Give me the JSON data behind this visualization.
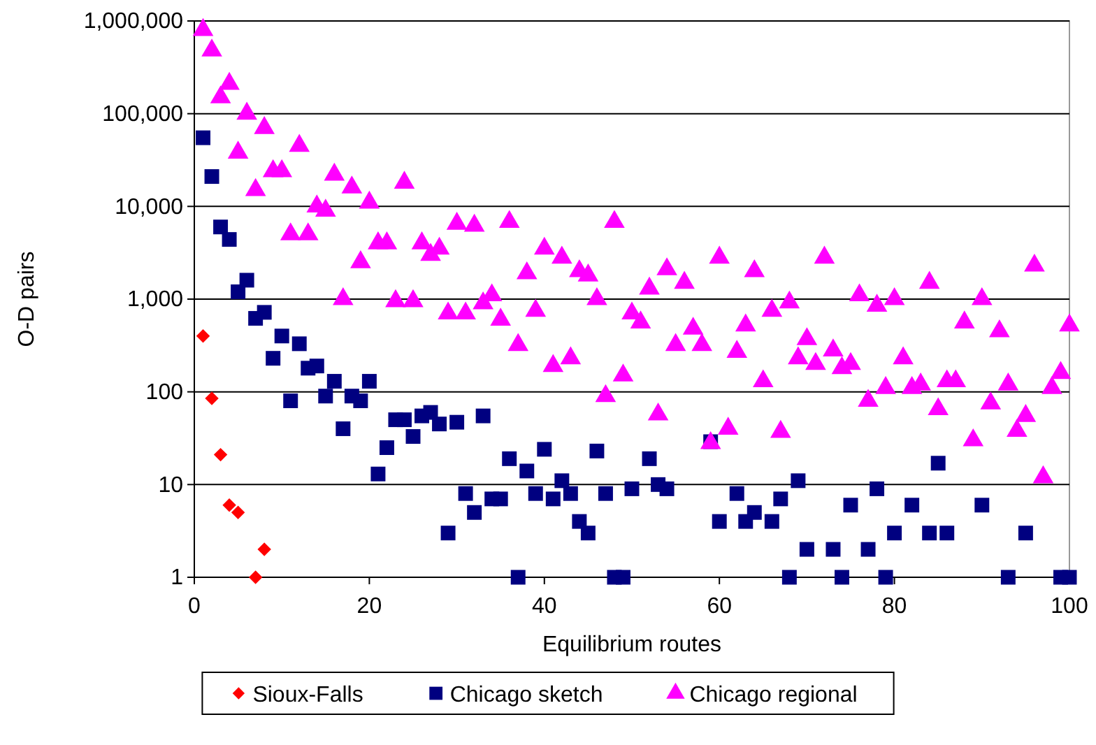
{
  "chart_data": {
    "type": "scatter",
    "xlabel": "Equilibrium routes",
    "ylabel": "O-D pairs",
    "log": "y",
    "grid": "y",
    "legend": "bottom",
    "xlim": [
      0,
      100
    ],
    "xticks": [
      0,
      20,
      40,
      60,
      80,
      100
    ],
    "ylim": [
      1,
      1000000
    ],
    "yticks": [
      1,
      10,
      100,
      {
        "value": 1000,
        "label": "1,000"
      },
      {
        "value": 10000,
        "label": "10,000"
      },
      {
        "value": 100000,
        "label": "100,000"
      },
      {
        "value": 1000000,
        "label": "1,000,000"
      }
    ],
    "series": [
      {
        "name": "Sioux-Falls",
        "color": "#ff0000",
        "marker": "diamond",
        "x": [
          1,
          2,
          3,
          4,
          5,
          7,
          8
        ],
        "values": [
          400,
          85,
          21,
          6,
          5,
          1,
          2
        ]
      },
      {
        "name": "Chicago sketch",
        "color": "#000080",
        "marker": "square",
        "x": [
          1,
          2,
          3,
          4,
          5,
          6,
          7,
          8,
          9,
          10,
          11,
          12,
          13,
          14,
          15,
          16,
          17,
          18,
          19,
          20,
          21,
          22,
          23,
          24,
          25,
          26,
          27,
          28,
          29,
          30,
          31,
          32,
          33,
          34,
          35,
          36,
          37,
          38,
          39,
          40,
          41,
          42,
          43,
          44,
          45,
          46,
          47,
          48,
          49,
          50,
          52,
          53,
          54,
          59,
          60,
          62,
          63,
          64,
          66,
          67,
          68,
          69,
          70,
          73,
          74,
          75,
          77,
          78,
          79,
          80,
          82,
          84,
          85,
          86,
          90,
          93,
          95,
          99,
          100
        ],
        "values": [
          55000,
          21000,
          6000,
          4400,
          1200,
          1600,
          620,
          720,
          230,
          400,
          80,
          330,
          180,
          190,
          90,
          130,
          40,
          90,
          80,
          130,
          13,
          25,
          50,
          50,
          33,
          55,
          60,
          45,
          3,
          47,
          8,
          5,
          55,
          7,
          7,
          19,
          1,
          14,
          8,
          24,
          7,
          11,
          8,
          4,
          3,
          23,
          8,
          1,
          1,
          9,
          19,
          10,
          9,
          29,
          4,
          8,
          4,
          5,
          4,
          7,
          1,
          11,
          2,
          2,
          1,
          6,
          2,
          9,
          1,
          3,
          6,
          3,
          17,
          3,
          6,
          1,
          3,
          1,
          1
        ]
      },
      {
        "name": "Chicago regional",
        "color": "#ff00ff",
        "marker": "triangle",
        "x": [
          1,
          2,
          3,
          4,
          5,
          6,
          7,
          8,
          9,
          10,
          11,
          12,
          13,
          14,
          15,
          16,
          17,
          18,
          19,
          20,
          21,
          22,
          23,
          24,
          25,
          26,
          27,
          28,
          29,
          30,
          31,
          32,
          33,
          34,
          35,
          36,
          37,
          38,
          39,
          40,
          41,
          42,
          43,
          44,
          45,
          46,
          47,
          48,
          49,
          50,
          51,
          52,
          53,
          54,
          55,
          56,
          57,
          58,
          59,
          60,
          61,
          62,
          63,
          64,
          65,
          66,
          67,
          68,
          69,
          70,
          71,
          72,
          73,
          74,
          75,
          76,
          77,
          78,
          79,
          80,
          81,
          82,
          83,
          84,
          85,
          86,
          87,
          88,
          89,
          90,
          91,
          92,
          93,
          94,
          95,
          96,
          97,
          98,
          99,
          100
        ],
        "values": [
          800000,
          480000,
          150000,
          210000,
          38000,
          100000,
          15000,
          70000,
          24000,
          24000,
          5000,
          45000,
          5000,
          10000,
          9000,
          22000,
          1000,
          16000,
          2500,
          11000,
          4000,
          4000,
          950,
          18000,
          950,
          4000,
          3000,
          3500,
          700,
          6500,
          700,
          6200,
          900,
          1100,
          600,
          6800,
          320,
          1900,
          750,
          3500,
          190,
          2800,
          230,
          2000,
          1800,
          1000,
          90,
          6800,
          150,
          700,
          560,
          1300,
          57,
          2100,
          320,
          1500,
          480,
          320,
          28,
          2800,
          40,
          270,
          520,
          2000,
          130,
          750,
          37,
          920,
          230,
          370,
          200,
          2800,
          280,
          180,
          200,
          1100,
          80,
          850,
          110,
          1000,
          230,
          110,
          120,
          1500,
          65,
          130,
          130,
          560,
          30,
          1000,
          75,
          450,
          120,
          38,
          55,
          2300,
          12,
          110,
          160,
          520
        ]
      }
    ]
  }
}
